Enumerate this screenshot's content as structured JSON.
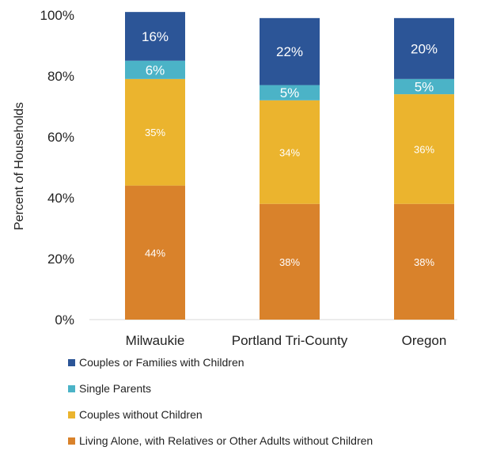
{
  "chart_data": {
    "type": "bar",
    "stacked": true,
    "title": "",
    "xlabel": "",
    "ylabel": "Percent of Households",
    "ylim": [
      0,
      100
    ],
    "yticks": [
      "0%",
      "20%",
      "40%",
      "60%",
      "80%",
      "100%"
    ],
    "categories": [
      "Milwaukie",
      "Portland Tri-County",
      "Oregon"
    ],
    "series": [
      {
        "name": "Living Alone, with Relatives or Other Adults without Children",
        "color": "#d9822b",
        "values": [
          44,
          38,
          38
        ],
        "labels": [
          "44%",
          "38%",
          "38%"
        ]
      },
      {
        "name": "Couples without Children",
        "color": "#ebb42e",
        "values": [
          35,
          34,
          36
        ],
        "labels": [
          "35%",
          "34%",
          "36%"
        ]
      },
      {
        "name": "Single Parents",
        "color": "#4bb3c7",
        "values": [
          6,
          5,
          5
        ],
        "labels": [
          "6%",
          "5%",
          "5%"
        ]
      },
      {
        "name": "Couples or Families with Children",
        "color": "#2c5597",
        "values": [
          16,
          22,
          20
        ],
        "labels": [
          "16%",
          "22%",
          "20%"
        ]
      }
    ],
    "legend_order": [
      3,
      2,
      1,
      0
    ],
    "legend": "bottom",
    "grid": false
  }
}
